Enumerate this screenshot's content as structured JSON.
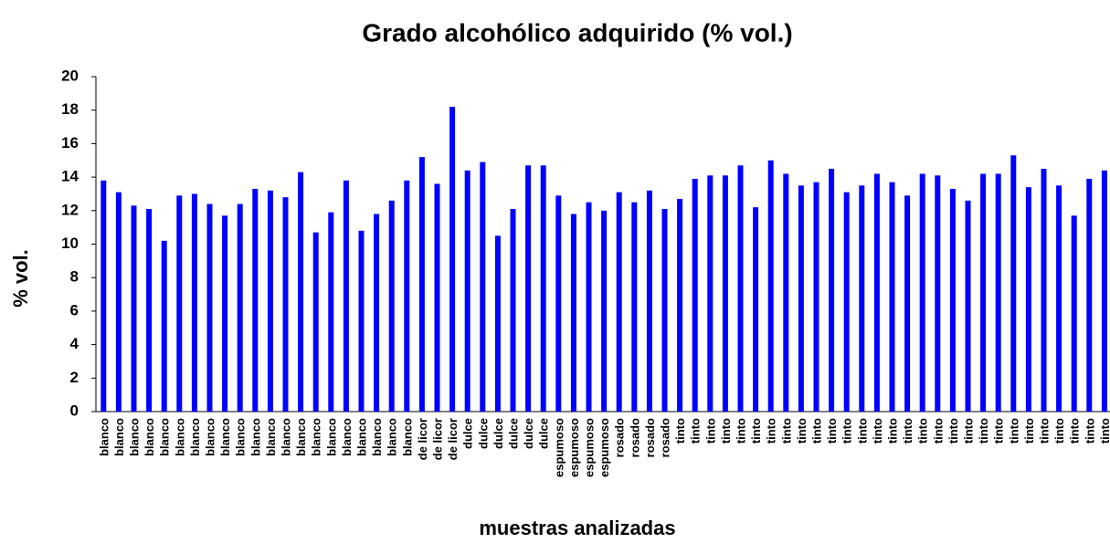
{
  "chart_data": {
    "type": "bar",
    "title": "Grado alcohólico adquirido (% vol.)",
    "x_label": "muestras analizadas",
    "y_label": "% vol.",
    "categories": [
      "blanco",
      "blanco",
      "blanco",
      "blanco",
      "blanco",
      "blanco",
      "blanco",
      "blanco",
      "blanco",
      "blanco",
      "blanco",
      "blanco",
      "blanco",
      "blanco",
      "blanco",
      "blanco",
      "blanco",
      "blanco",
      "blanco",
      "blanco",
      "blanco",
      "de licor",
      "de licor",
      "de licor",
      "dulce",
      "dulce",
      "dulce",
      "dulce",
      "dulce",
      "dulce",
      "espumoso",
      "espumoso",
      "espumoso",
      "espumoso",
      "rosado",
      "rosado",
      "rosado",
      "rosado",
      "tinto",
      "tinto",
      "tinto",
      "tinto",
      "tinto",
      "tinto",
      "tinto",
      "tinto",
      "tinto",
      "tinto",
      "tinto",
      "tinto",
      "tinto",
      "tinto",
      "tinto",
      "tinto",
      "tinto",
      "tinto",
      "tinto",
      "tinto",
      "tinto",
      "tinto",
      "tinto",
      "tinto",
      "tinto",
      "tinto",
      "tinto",
      "tinto",
      "tinto"
    ],
    "values": [
      13.8,
      13.1,
      12.3,
      12.1,
      10.2,
      12.9,
      13.0,
      12.4,
      11.7,
      12.4,
      13.3,
      13.2,
      12.8,
      14.3,
      10.7,
      11.9,
      13.8,
      10.8,
      11.8,
      12.6,
      13.8,
      15.2,
      13.6,
      18.2,
      14.4,
      14.9,
      10.5,
      12.1,
      14.7,
      14.7,
      12.9,
      11.8,
      12.5,
      12.0,
      13.1,
      12.5,
      13.2,
      12.1,
      12.7,
      13.9,
      14.1,
      14.1,
      14.7,
      12.2,
      15.0,
      14.2,
      13.5,
      13.7,
      14.5,
      13.1,
      13.5,
      14.2,
      13.7,
      12.9,
      14.2,
      14.1,
      13.3,
      12.6,
      14.2,
      14.2,
      15.3,
      13.4,
      14.5,
      13.5,
      11.7,
      13.9,
      14.4
    ],
    "color": "#0000ff",
    "ylim": [
      0,
      20
    ],
    "yticks": [
      0,
      2,
      4,
      6,
      8,
      10,
      12,
      14,
      16,
      18,
      20
    ],
    "grid": false
  }
}
